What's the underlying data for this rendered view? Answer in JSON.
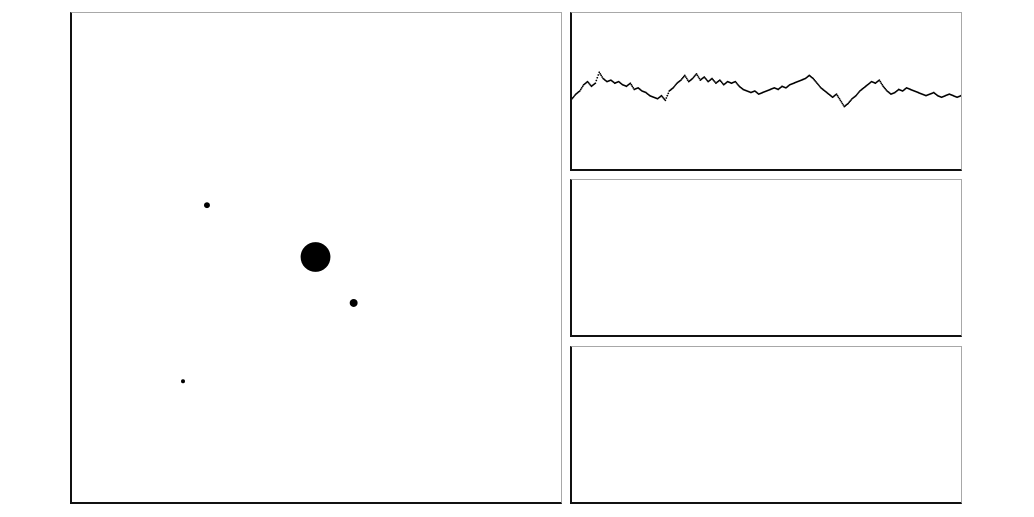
{
  "chart_data": [
    {
      "type": "scatter",
      "title": "",
      "xlabel": "",
      "ylabel": "",
      "xlim": [
        0,
        1
      ],
      "ylim": [
        0,
        1
      ],
      "grid": false,
      "axes_visible": false,
      "points": [
        {
          "x": 0.498,
          "y": 0.501,
          "size": 30
        },
        {
          "x": 0.276,
          "y": 0.607,
          "size": 6
        },
        {
          "x": 0.576,
          "y": 0.407,
          "size": 8
        },
        {
          "x": 0.227,
          "y": 0.247,
          "size": 4
        }
      ],
      "color": "#000000"
    },
    {
      "type": "scatter",
      "title": "",
      "xlabel": "",
      "ylabel": "",
      "xlim": [
        0,
        1
      ],
      "ylim": [
        0,
        1
      ],
      "grid": false,
      "axes_visible": false,
      "marker": "dot",
      "color": "#000000",
      "x": [
        0.0,
        0.01,
        0.02,
        0.03,
        0.04,
        0.05,
        0.06,
        0.07,
        0.08,
        0.09,
        0.1,
        0.11,
        0.12,
        0.13,
        0.14,
        0.15,
        0.16,
        0.17,
        0.18,
        0.19,
        0.2,
        0.21,
        0.22,
        0.23,
        0.24,
        0.25,
        0.26,
        0.27,
        0.28,
        0.29,
        0.3,
        0.31,
        0.32,
        0.33,
        0.34,
        0.35,
        0.36,
        0.37,
        0.38,
        0.39,
        0.4,
        0.41,
        0.42,
        0.43,
        0.44,
        0.45,
        0.46,
        0.47,
        0.48,
        0.49,
        0.5,
        0.51,
        0.52,
        0.53,
        0.54,
        0.55,
        0.56,
        0.57,
        0.58,
        0.59,
        0.6,
        0.61,
        0.62,
        0.63,
        0.64,
        0.65,
        0.66,
        0.67,
        0.68,
        0.69,
        0.7,
        0.71,
        0.72,
        0.73,
        0.74,
        0.75,
        0.76,
        0.77,
        0.78,
        0.79,
        0.8,
        0.81,
        0.82,
        0.83,
        0.84,
        0.85,
        0.86,
        0.87,
        0.88,
        0.89,
        0.9,
        0.91,
        0.92,
        0.93,
        0.94,
        0.95,
        0.96,
        0.97,
        0.98,
        0.99,
        1.0
      ],
      "y": [
        0.45,
        0.48,
        0.5,
        0.54,
        0.56,
        0.53,
        0.55,
        0.62,
        0.58,
        0.56,
        0.57,
        0.55,
        0.56,
        0.54,
        0.53,
        0.55,
        0.51,
        0.52,
        0.5,
        0.49,
        0.47,
        0.46,
        0.45,
        0.47,
        0.44,
        0.5,
        0.52,
        0.55,
        0.57,
        0.6,
        0.56,
        0.58,
        0.61,
        0.57,
        0.59,
        0.56,
        0.58,
        0.55,
        0.57,
        0.54,
        0.56,
        0.55,
        0.56,
        0.53,
        0.51,
        0.5,
        0.49,
        0.5,
        0.48,
        0.49,
        0.5,
        0.51,
        0.52,
        0.51,
        0.53,
        0.52,
        0.54,
        0.55,
        0.56,
        0.57,
        0.58,
        0.6,
        0.58,
        0.55,
        0.52,
        0.5,
        0.48,
        0.46,
        0.48,
        0.44,
        0.4,
        0.42,
        0.45,
        0.47,
        0.5,
        0.52,
        0.54,
        0.56,
        0.55,
        0.57,
        0.53,
        0.5,
        0.48,
        0.49,
        0.51,
        0.5,
        0.52,
        0.51,
        0.5,
        0.49,
        0.48,
        0.47,
        0.48,
        0.49,
        0.47,
        0.46,
        0.47,
        0.48,
        0.47,
        0.46,
        0.47
      ]
    },
    {
      "type": "scatter",
      "title": "",
      "xlabel": "",
      "ylabel": "",
      "grid": false,
      "axes_visible": false,
      "x": [],
      "y": []
    },
    {
      "type": "scatter",
      "title": "",
      "xlabel": "",
      "ylabel": "",
      "grid": false,
      "axes_visible": false,
      "x": [],
      "y": []
    }
  ]
}
